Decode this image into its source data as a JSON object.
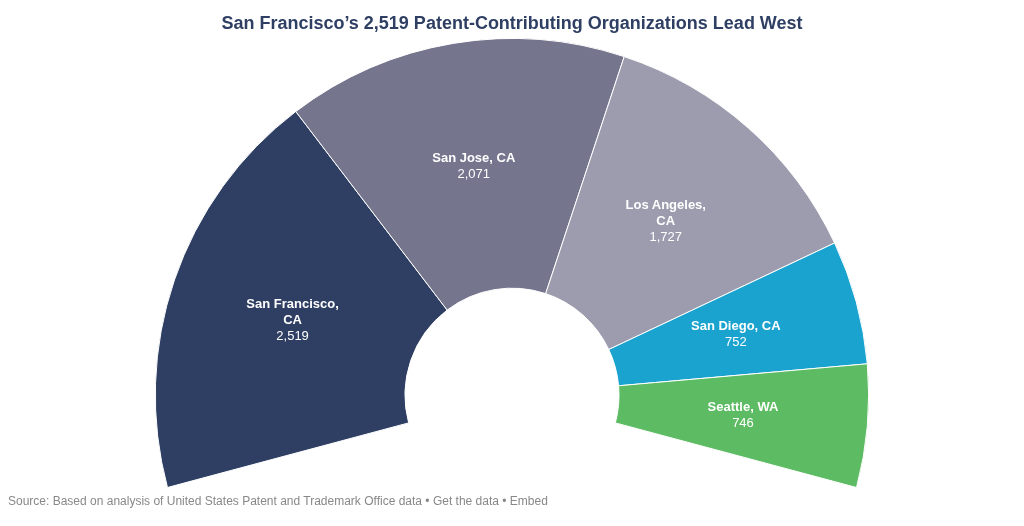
{
  "chart_data": {
    "type": "donut",
    "title": "San Francisco’s 2,519 Patent-Contributing Organizations Lead West",
    "categories": [
      "San Francisco, CA",
      "San Jose, CA",
      "Los Angeles, CA",
      "San Diego, CA",
      "Seattle, WA"
    ],
    "values": [
      2519,
      2071,
      1727,
      752,
      746
    ],
    "colors": [
      "#2e3f63",
      "#75768e",
      "#9d9caf",
      "#1aa3cf",
      "#5dbb63"
    ],
    "value_labels": [
      "2,519",
      "2,071",
      "1,727",
      "752",
      "746"
    ],
    "annotations": [
      "Source: Based on analysis of United States Patent and Trademark Office data • Get the data • Embed"
    ]
  }
}
